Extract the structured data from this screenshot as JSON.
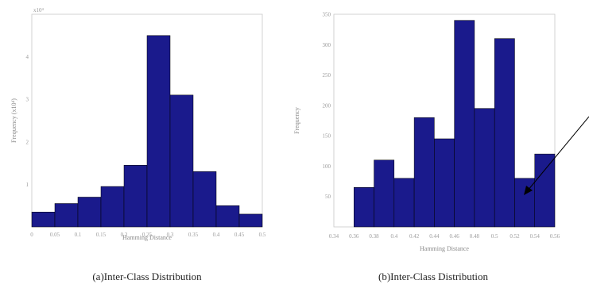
{
  "chart_data": [
    {
      "type": "bar",
      "x": [
        0,
        0.05,
        0.1,
        0.15,
        0.2,
        0.25,
        0.3,
        0.35,
        0.4,
        0.45
      ],
      "values": [
        0.35,
        0.55,
        0.7,
        0.95,
        1.45,
        4.5,
        3.1,
        1.3,
        0.5,
        0.3
      ],
      "xlim": [
        0,
        0.5
      ],
      "ylim": [
        0,
        5
      ],
      "xticks": [
        "0",
        "0.05",
        "0.1",
        "0.15",
        "0.2",
        "0.25",
        "0.3",
        "0.35",
        "0.4",
        "0.45",
        "0.5"
      ],
      "yticks": [
        "1",
        "2",
        "3",
        "4"
      ],
      "exponent_label": "x10⁴",
      "xlabel": "Hamming Distance",
      "ylabel": "Frequency (x10⁴)",
      "caption": "(a)Inter-Class Distribution",
      "bar_color": "#1a1a8c",
      "grid": false
    },
    {
      "type": "bar",
      "x": [
        0.36,
        0.38,
        0.4,
        0.42,
        0.44,
        0.46,
        0.48,
        0.5,
        0.52,
        0.54
      ],
      "values": [
        65,
        110,
        80,
        180,
        145,
        340,
        195,
        310,
        80,
        120
      ],
      "xlim": [
        0.34,
        0.56
      ],
      "ylim": [
        0,
        350
      ],
      "xticks": [
        "0.34",
        "0.36",
        "0.38",
        "0.4",
        "0.42",
        "0.44",
        "0.46",
        "0.48",
        "0.5",
        "0.52",
        "0.54",
        "0.56"
      ],
      "yticks": [
        "50",
        "100",
        "150",
        "200",
        "250",
        "300",
        "350"
      ],
      "xlabel": "Hamming Distance",
      "ylabel": "Frequency",
      "caption": "(b)Inter-Class Distribution",
      "bar_color": "#1a1a8c",
      "grid": false
    }
  ]
}
